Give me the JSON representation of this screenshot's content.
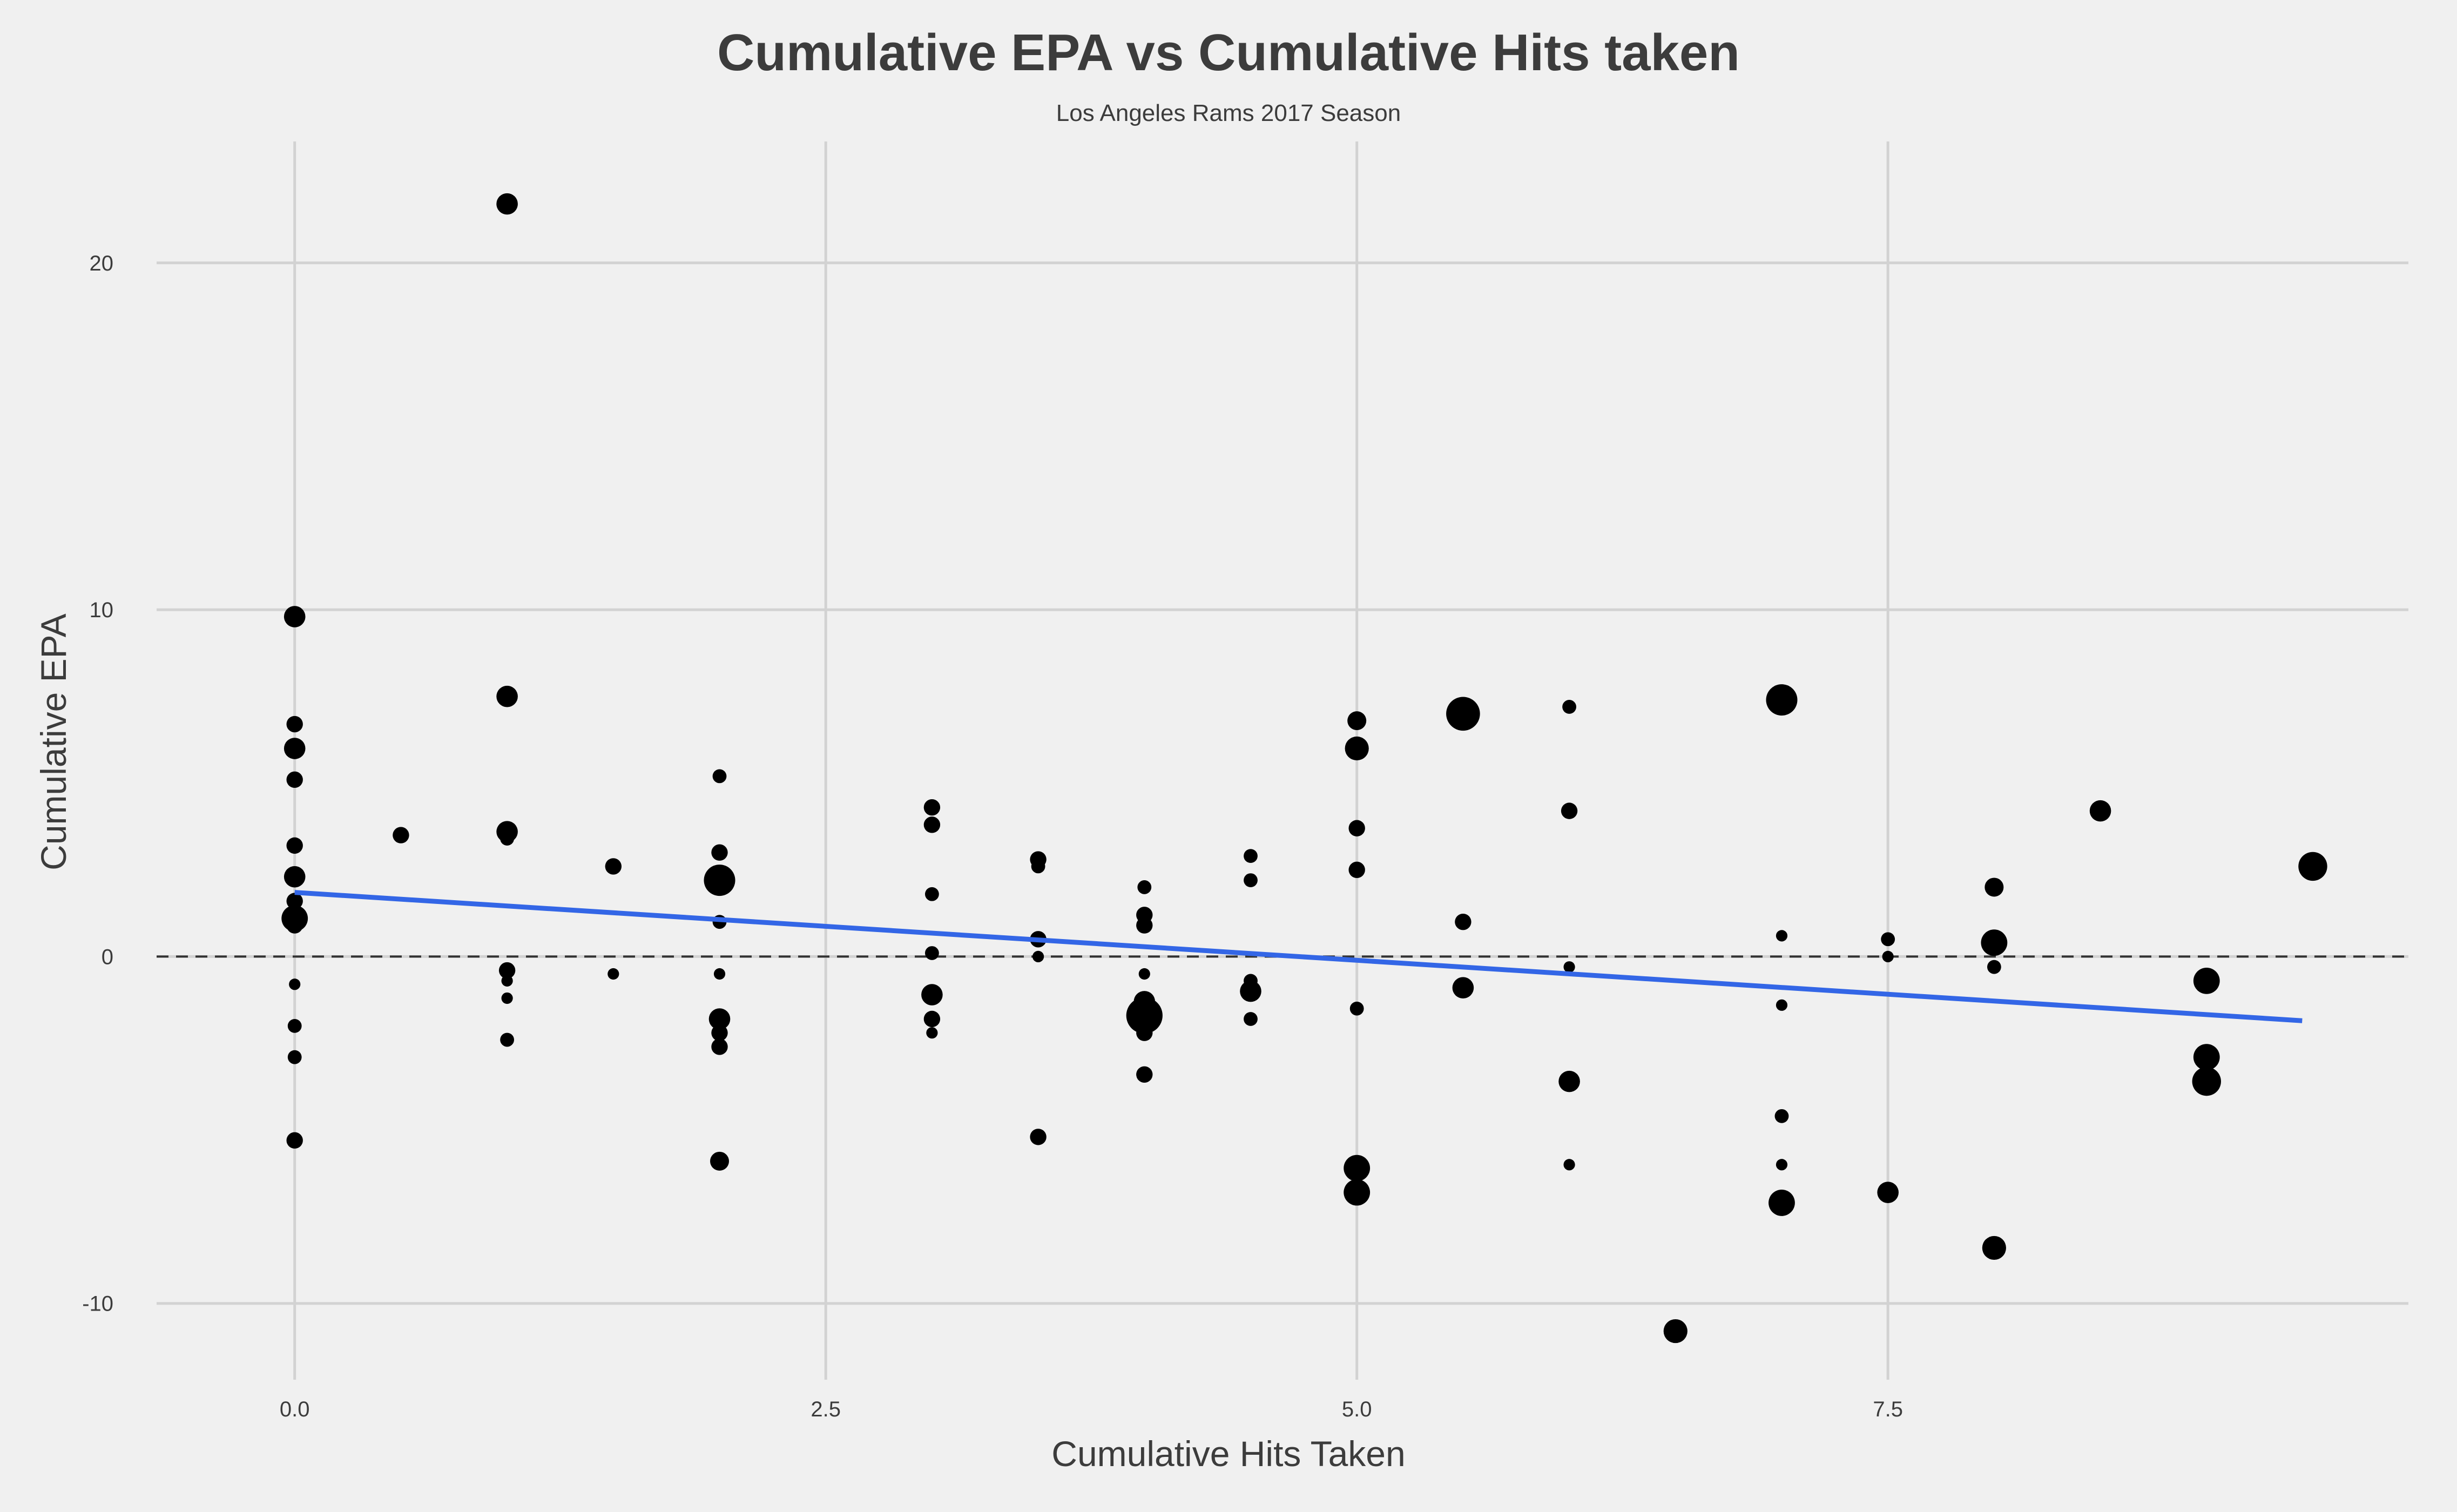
{
  "chart_data": {
    "type": "scatter",
    "title": "Cumulative EPA vs Cumulative Hits taken",
    "subtitle": "Los Angeles Rams 2017 Season",
    "xlabel": "Cumulative Hits Taken",
    "ylabel": "Cumulative EPA",
    "xlim": [
      -0.65,
      9.95
    ],
    "ylim": [
      -12.2,
      23.5
    ],
    "x_ticks": [
      {
        "value": 0,
        "label": "0.0"
      },
      {
        "value": 2.5,
        "label": "2.5"
      },
      {
        "value": 5,
        "label": "5.0"
      },
      {
        "value": 7.5,
        "label": "7.5"
      }
    ],
    "y_ticks": [
      {
        "value": -10,
        "label": "-10"
      },
      {
        "value": 0,
        "label": "0"
      },
      {
        "value": 10,
        "label": "10"
      },
      {
        "value": 20,
        "label": "20"
      }
    ],
    "grid": true,
    "reference_line": {
      "y": 0,
      "style": "dashed"
    },
    "trend_line": {
      "x": [
        0,
        9.45
      ],
      "y": [
        1.85,
        -1.85
      ],
      "color": "#3366e6"
    },
    "point_size_note": "point size varies (relative size 1-6)",
    "points": [
      {
        "x": 0,
        "y": 9.8,
        "size": 3
      },
      {
        "x": 0,
        "y": 6.7,
        "size": 2
      },
      {
        "x": 0,
        "y": 6.0,
        "size": 3
      },
      {
        "x": 0,
        "y": 5.1,
        "size": 2
      },
      {
        "x": 0,
        "y": 3.2,
        "size": 2
      },
      {
        "x": 0,
        "y": 2.3,
        "size": 3
      },
      {
        "x": 0,
        "y": 1.6,
        "size": 2
      },
      {
        "x": 0,
        "y": 1.1,
        "size": 4
      },
      {
        "x": 0,
        "y": 0.9,
        "size": 2
      },
      {
        "x": 0,
        "y": -0.8,
        "size": 1
      },
      {
        "x": 0,
        "y": -2.0,
        "size": 1.5
      },
      {
        "x": 0,
        "y": -2.9,
        "size": 1.5
      },
      {
        "x": 0,
        "y": -5.3,
        "size": 2
      },
      {
        "x": 0.5,
        "y": 3.5,
        "size": 2
      },
      {
        "x": 1,
        "y": 21.7,
        "size": 3
      },
      {
        "x": 1,
        "y": 7.5,
        "size": 3
      },
      {
        "x": 1,
        "y": 3.6,
        "size": 3
      },
      {
        "x": 1,
        "y": 3.4,
        "size": 1.5
      },
      {
        "x": 1,
        "y": -0.4,
        "size": 2
      },
      {
        "x": 1,
        "y": -0.7,
        "size": 1
      },
      {
        "x": 1,
        "y": -1.2,
        "size": 1
      },
      {
        "x": 1,
        "y": -2.4,
        "size": 1.5
      },
      {
        "x": 1.5,
        "y": 2.6,
        "size": 2
      },
      {
        "x": 1.5,
        "y": -0.5,
        "size": 1
      },
      {
        "x": 2,
        "y": 5.2,
        "size": 1.5
      },
      {
        "x": 2,
        "y": 3.0,
        "size": 2
      },
      {
        "x": 2,
        "y": 2.2,
        "size": 5
      },
      {
        "x": 2,
        "y": 1.0,
        "size": 1.5
      },
      {
        "x": 2,
        "y": -0.5,
        "size": 1
      },
      {
        "x": 2,
        "y": -1.8,
        "size": 3
      },
      {
        "x": 2,
        "y": -2.2,
        "size": 2
      },
      {
        "x": 2,
        "y": -2.6,
        "size": 2
      },
      {
        "x": 2,
        "y": -5.9,
        "size": 2.5
      },
      {
        "x": 3,
        "y": 4.3,
        "size": 2
      },
      {
        "x": 3,
        "y": 3.8,
        "size": 2
      },
      {
        "x": 3,
        "y": 1.8,
        "size": 1.5
      },
      {
        "x": 3,
        "y": 0.1,
        "size": 1.5
      },
      {
        "x": 3,
        "y": -1.1,
        "size": 3
      },
      {
        "x": 3,
        "y": -1.8,
        "size": 2
      },
      {
        "x": 3,
        "y": -2.2,
        "size": 1
      },
      {
        "x": 3.5,
        "y": 2.8,
        "size": 2
      },
      {
        "x": 3.5,
        "y": 2.6,
        "size": 1.5
      },
      {
        "x": 3.5,
        "y": 0.5,
        "size": 2
      },
      {
        "x": 3.5,
        "y": 0.0,
        "size": 1
      },
      {
        "x": 3.5,
        "y": -5.2,
        "size": 2
      },
      {
        "x": 4,
        "y": 2.0,
        "size": 1.5
      },
      {
        "x": 4,
        "y": 1.2,
        "size": 2
      },
      {
        "x": 4,
        "y": 0.9,
        "size": 2
      },
      {
        "x": 4,
        "y": -0.5,
        "size": 1
      },
      {
        "x": 4,
        "y": -1.3,
        "size": 3
      },
      {
        "x": 4,
        "y": -1.7,
        "size": 6
      },
      {
        "x": 4,
        "y": -2.2,
        "size": 2
      },
      {
        "x": 4,
        "y": -3.4,
        "size": 2
      },
      {
        "x": 4.5,
        "y": 2.9,
        "size": 1.5
      },
      {
        "x": 4.5,
        "y": 2.2,
        "size": 1.5
      },
      {
        "x": 4.5,
        "y": -0.7,
        "size": 1.5
      },
      {
        "x": 4.5,
        "y": -1.0,
        "size": 3
      },
      {
        "x": 4.5,
        "y": -1.8,
        "size": 1.5
      },
      {
        "x": 5,
        "y": 6.8,
        "size": 2.5
      },
      {
        "x": 5,
        "y": 6.0,
        "size": 3.5
      },
      {
        "x": 5,
        "y": 3.7,
        "size": 2
      },
      {
        "x": 5,
        "y": 2.5,
        "size": 2
      },
      {
        "x": 5,
        "y": -1.5,
        "size": 1.5
      },
      {
        "x": 5,
        "y": -6.1,
        "size": 4
      },
      {
        "x": 5,
        "y": -6.8,
        "size": 4
      },
      {
        "x": 5.5,
        "y": 7.0,
        "size": 5.5
      },
      {
        "x": 5.5,
        "y": 1.0,
        "size": 2
      },
      {
        "x": 5.5,
        "y": -0.9,
        "size": 3
      },
      {
        "x": 6,
        "y": 7.2,
        "size": 1.5
      },
      {
        "x": 6,
        "y": 4.2,
        "size": 2
      },
      {
        "x": 6,
        "y": -0.3,
        "size": 1
      },
      {
        "x": 6,
        "y": -3.6,
        "size": 3
      },
      {
        "x": 6,
        "y": -6.0,
        "size": 1
      },
      {
        "x": 6.5,
        "y": -10.8,
        "size": 3.5
      },
      {
        "x": 7,
        "y": 7.4,
        "size": 5
      },
      {
        "x": 7,
        "y": 0.6,
        "size": 1
      },
      {
        "x": 7,
        "y": -1.4,
        "size": 1
      },
      {
        "x": 7,
        "y": -4.6,
        "size": 1.5
      },
      {
        "x": 7,
        "y": -6.0,
        "size": 1
      },
      {
        "x": 7,
        "y": -7.1,
        "size": 4
      },
      {
        "x": 7.5,
        "y": 0.5,
        "size": 1.5
      },
      {
        "x": 7.5,
        "y": 0.0,
        "size": 1
      },
      {
        "x": 7.5,
        "y": -6.8,
        "size": 3
      },
      {
        "x": 8,
        "y": 2.0,
        "size": 2.5
      },
      {
        "x": 8,
        "y": 0.4,
        "size": 4
      },
      {
        "x": 8,
        "y": -0.3,
        "size": 1.5
      },
      {
        "x": 8,
        "y": -8.4,
        "size": 3.5
      },
      {
        "x": 8.5,
        "y": 4.2,
        "size": 3
      },
      {
        "x": 9,
        "y": -0.7,
        "size": 4
      },
      {
        "x": 9,
        "y": -2.9,
        "size": 4
      },
      {
        "x": 9,
        "y": -3.6,
        "size": 4.5
      },
      {
        "x": 9.5,
        "y": 2.6,
        "size": 4.5
      }
    ]
  }
}
